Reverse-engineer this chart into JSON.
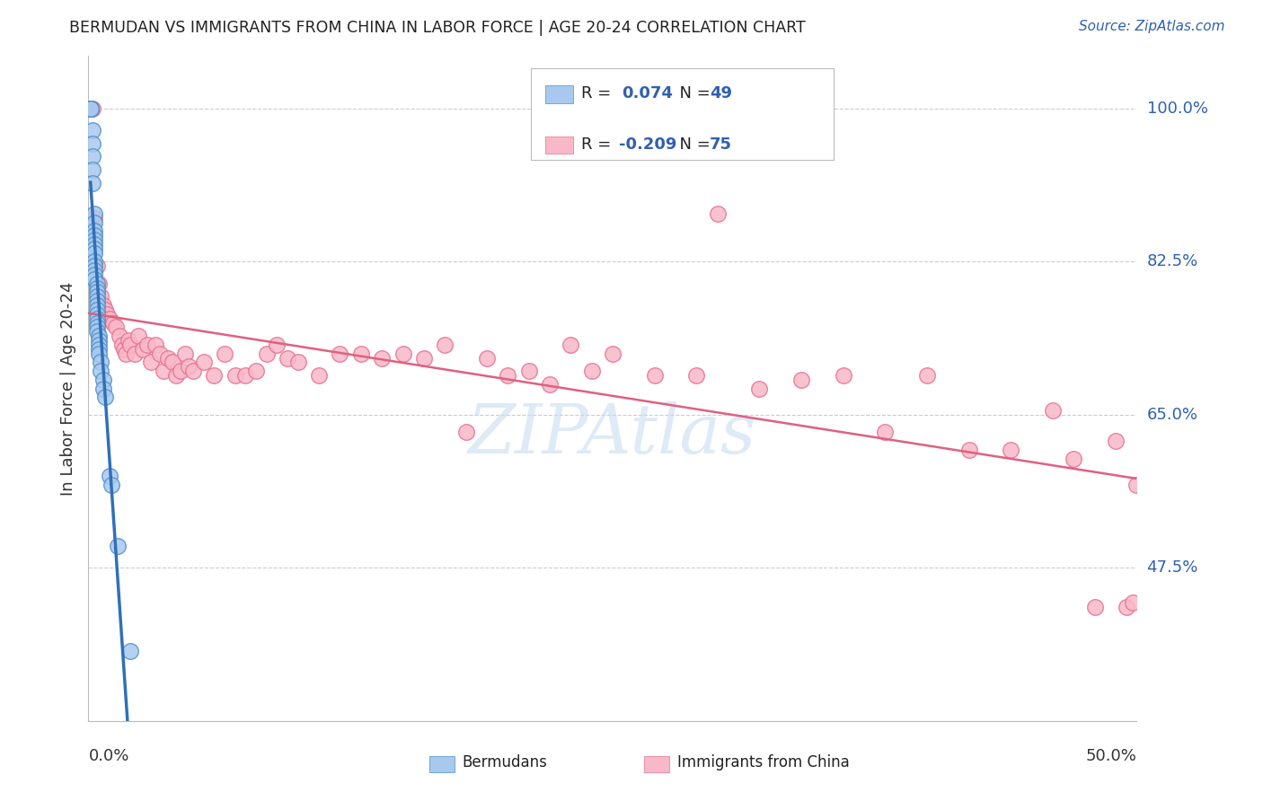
{
  "title": "BERMUDAN VS IMMIGRANTS FROM CHINA IN LABOR FORCE | AGE 20-24 CORRELATION CHART",
  "source": "Source: ZipAtlas.com",
  "ylabel": "In Labor Force | Age 20-24",
  "xmin": 0.0,
  "xmax": 0.5,
  "ymin": 0.3,
  "ymax": 1.06,
  "yticks": [
    0.475,
    0.65,
    0.825,
    1.0
  ],
  "ytick_labels": [
    "47.5%",
    "65.0%",
    "82.5%",
    "100.0%"
  ],
  "bermudan_color": "#A8C8EE",
  "bermudan_edge_color": "#5090C8",
  "china_color": "#F8B8C8",
  "china_edge_color": "#E87090",
  "bermudan_line_color": "#3070B8",
  "bermudan_line_dash_color": "#90B8E0",
  "china_line_color": "#E06080",
  "watermark": "ZIPAtlas",
  "watermark_color": "#C8DCF0",
  "grid_color": "#CCCCCC",
  "bermudan_x": [
    0.001,
    0.001,
    0.001,
    0.001,
    0.001,
    0.002,
    0.002,
    0.002,
    0.002,
    0.002,
    0.003,
    0.003,
    0.003,
    0.003,
    0.003,
    0.003,
    0.003,
    0.003,
    0.003,
    0.003,
    0.003,
    0.003,
    0.003,
    0.004,
    0.004,
    0.004,
    0.004,
    0.004,
    0.004,
    0.004,
    0.004,
    0.004,
    0.004,
    0.004,
    0.004,
    0.005,
    0.005,
    0.005,
    0.005,
    0.005,
    0.006,
    0.006,
    0.007,
    0.007,
    0.008,
    0.01,
    0.011,
    0.014,
    0.02
  ],
  "bermudan_y": [
    1.0,
    1.0,
    1.0,
    1.0,
    1.0,
    0.975,
    0.96,
    0.945,
    0.93,
    0.915,
    0.88,
    0.87,
    0.86,
    0.855,
    0.85,
    0.845,
    0.84,
    0.835,
    0.825,
    0.82,
    0.815,
    0.81,
    0.805,
    0.8,
    0.795,
    0.79,
    0.785,
    0.78,
    0.775,
    0.77,
    0.765,
    0.76,
    0.755,
    0.75,
    0.745,
    0.74,
    0.735,
    0.73,
    0.725,
    0.72,
    0.71,
    0.7,
    0.69,
    0.68,
    0.67,
    0.58,
    0.57,
    0.5,
    0.38
  ],
  "china_x": [
    0.001,
    0.002,
    0.003,
    0.004,
    0.005,
    0.006,
    0.007,
    0.008,
    0.009,
    0.01,
    0.012,
    0.013,
    0.015,
    0.016,
    0.017,
    0.018,
    0.019,
    0.02,
    0.022,
    0.024,
    0.026,
    0.028,
    0.03,
    0.032,
    0.034,
    0.036,
    0.038,
    0.04,
    0.042,
    0.044,
    0.046,
    0.048,
    0.05,
    0.055,
    0.06,
    0.065,
    0.07,
    0.075,
    0.08,
    0.085,
    0.09,
    0.095,
    0.1,
    0.11,
    0.12,
    0.13,
    0.14,
    0.15,
    0.16,
    0.17,
    0.18,
    0.19,
    0.2,
    0.21,
    0.22,
    0.23,
    0.24,
    0.25,
    0.27,
    0.29,
    0.3,
    0.32,
    0.34,
    0.36,
    0.38,
    0.4,
    0.42,
    0.44,
    0.46,
    0.47,
    0.48,
    0.49,
    0.495,
    0.498,
    0.5
  ],
  "china_y": [
    1.0,
    1.0,
    0.875,
    0.82,
    0.8,
    0.785,
    0.775,
    0.77,
    0.765,
    0.76,
    0.755,
    0.75,
    0.74,
    0.73,
    0.725,
    0.72,
    0.735,
    0.73,
    0.72,
    0.74,
    0.725,
    0.73,
    0.71,
    0.73,
    0.72,
    0.7,
    0.715,
    0.71,
    0.695,
    0.7,
    0.72,
    0.705,
    0.7,
    0.71,
    0.695,
    0.72,
    0.695,
    0.695,
    0.7,
    0.72,
    0.73,
    0.715,
    0.71,
    0.695,
    0.72,
    0.72,
    0.715,
    0.72,
    0.715,
    0.73,
    0.63,
    0.715,
    0.695,
    0.7,
    0.685,
    0.73,
    0.7,
    0.72,
    0.695,
    0.695,
    0.88,
    0.68,
    0.69,
    0.695,
    0.63,
    0.695,
    0.61,
    0.61,
    0.655,
    0.6,
    0.43,
    0.62,
    0.43,
    0.435,
    0.57
  ]
}
